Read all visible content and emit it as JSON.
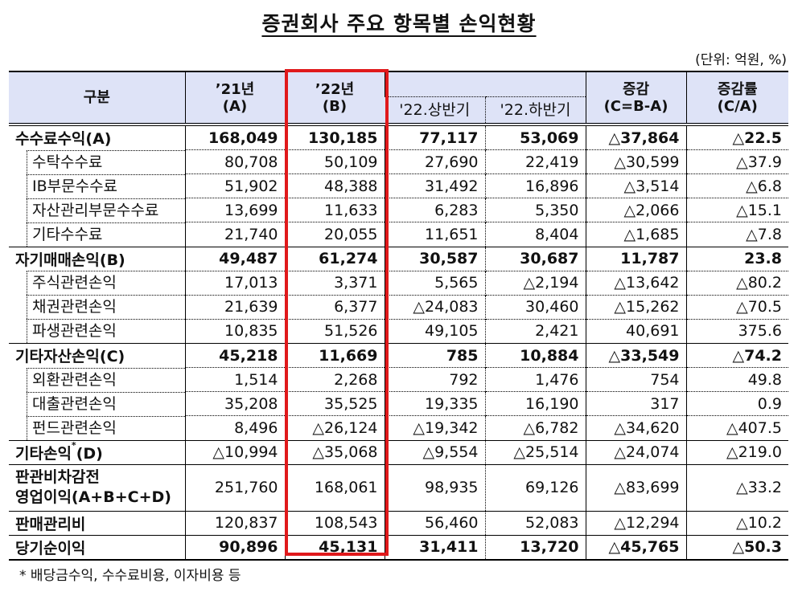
{
  "title": "증권회사 주요 항목별 손익현황",
  "unit": "(단위: 억원, %)",
  "header": {
    "category": "구분",
    "y21": "’21년",
    "y21_sub": "(A)",
    "y22": "’22년",
    "y22_sub": "(B)",
    "h1": "'22.상반기",
    "h2": "'22.하반기",
    "change": "증감",
    "change_sub": "(C=B-A)",
    "rate": "증감률",
    "rate_sub": "(C/A)"
  },
  "rows": [
    {
      "label": "수수료수익(A)",
      "type": "major",
      "y21": "168,049",
      "y22": "130,185",
      "h1": "77,117",
      "h2": "53,069",
      "change": "△37,864",
      "rate": "△22.5"
    },
    {
      "label": "수탁수수료",
      "type": "sub",
      "y21": "80,708",
      "y22": "50,109",
      "h1": "27,690",
      "h2": "22,419",
      "change": "△30,599",
      "rate": "△37.9"
    },
    {
      "label": "IB부문수수료",
      "type": "sub",
      "y21": "51,902",
      "y22": "48,388",
      "h1": "31,492",
      "h2": "16,896",
      "change": "△3,514",
      "rate": "△6.8"
    },
    {
      "label": "자산관리부문수수료",
      "type": "sub",
      "y21": "13,699",
      "y22": "11,633",
      "h1": "6,283",
      "h2": "5,350",
      "change": "△2,066",
      "rate": "△15.1"
    },
    {
      "label": "기타수수료",
      "type": "sub",
      "y21": "21,740",
      "y22": "20,055",
      "h1": "11,651",
      "h2": "8,404",
      "change": "△1,685",
      "rate": "△7.8"
    },
    {
      "label": "자기매매손익(B)",
      "type": "major",
      "y21": "49,487",
      "y22": "61,274",
      "h1": "30,587",
      "h2": "30,687",
      "change": "11,787",
      "rate": "23.8"
    },
    {
      "label": "주식관련손익",
      "type": "sub",
      "y21": "17,013",
      "y22": "3,371",
      "h1": "5,565",
      "h2": "△2,194",
      "change": "△13,642",
      "rate": "△80.2"
    },
    {
      "label": "채권관련손익",
      "type": "sub",
      "y21": "21,639",
      "y22": "6,377",
      "h1": "△24,083",
      "h2": "30,460",
      "change": "△15,262",
      "rate": "△70.5"
    },
    {
      "label": "파생관련손익",
      "type": "sub",
      "y21": "10,835",
      "y22": "51,526",
      "h1": "49,105",
      "h2": "2,421",
      "change": "40,691",
      "rate": "375.6"
    },
    {
      "label": "기타자산손익(C)",
      "type": "major",
      "y21": "45,218",
      "y22": "11,669",
      "h1": "785",
      "h2": "10,884",
      "change": "△33,549",
      "rate": "△74.2"
    },
    {
      "label": "외환관련손익",
      "type": "sub",
      "y21": "1,514",
      "y22": "2,268",
      "h1": "792",
      "h2": "1,476",
      "change": "754",
      "rate": "49.8"
    },
    {
      "label": "대출관련손익",
      "type": "sub",
      "y21": "35,208",
      "y22": "35,525",
      "h1": "19,335",
      "h2": "16,190",
      "change": "317",
      "rate": "0.9"
    },
    {
      "label": "펀드관련손익",
      "type": "sub",
      "y21": "8,496",
      "y22": "△26,124",
      "h1": "△19,342",
      "h2": "△6,782",
      "change": "△34,620",
      "rate": "△407.5"
    },
    {
      "label": "기타손익",
      "label_sup": "*",
      "label_suffix": "(D)",
      "type": "plain",
      "y21": "△10,994",
      "y22": "△35,068",
      "h1": "△9,554",
      "h2": "△25,514",
      "change": "△24,074",
      "rate": "△219.0"
    },
    {
      "label": "판관비차감전",
      "label_line2": "영업이익(A+B+C+D)",
      "type": "plain-tall",
      "y21": "251,760",
      "y22": "168,061",
      "h1": "98,935",
      "h2": "69,126",
      "change": "△83,699",
      "rate": "△33.2"
    },
    {
      "label": "판매관리비",
      "type": "plain",
      "y21": "120,837",
      "y22": "108,543",
      "h1": "56,460",
      "h2": "52,083",
      "change": "△12,294",
      "rate": "△10.2"
    },
    {
      "label": "당기순이익",
      "type": "major-last",
      "y21": "90,896",
      "y22": "45,131",
      "h1": "31,411",
      "h2": "13,720",
      "change": "△45,765",
      "rate": "△50.3"
    }
  ],
  "footnote": "* 배당금수익, 수수료비용, 이자비용 등",
  "colors": {
    "header_bg": "#dee3f7",
    "highlight_border": "#e0191b"
  }
}
